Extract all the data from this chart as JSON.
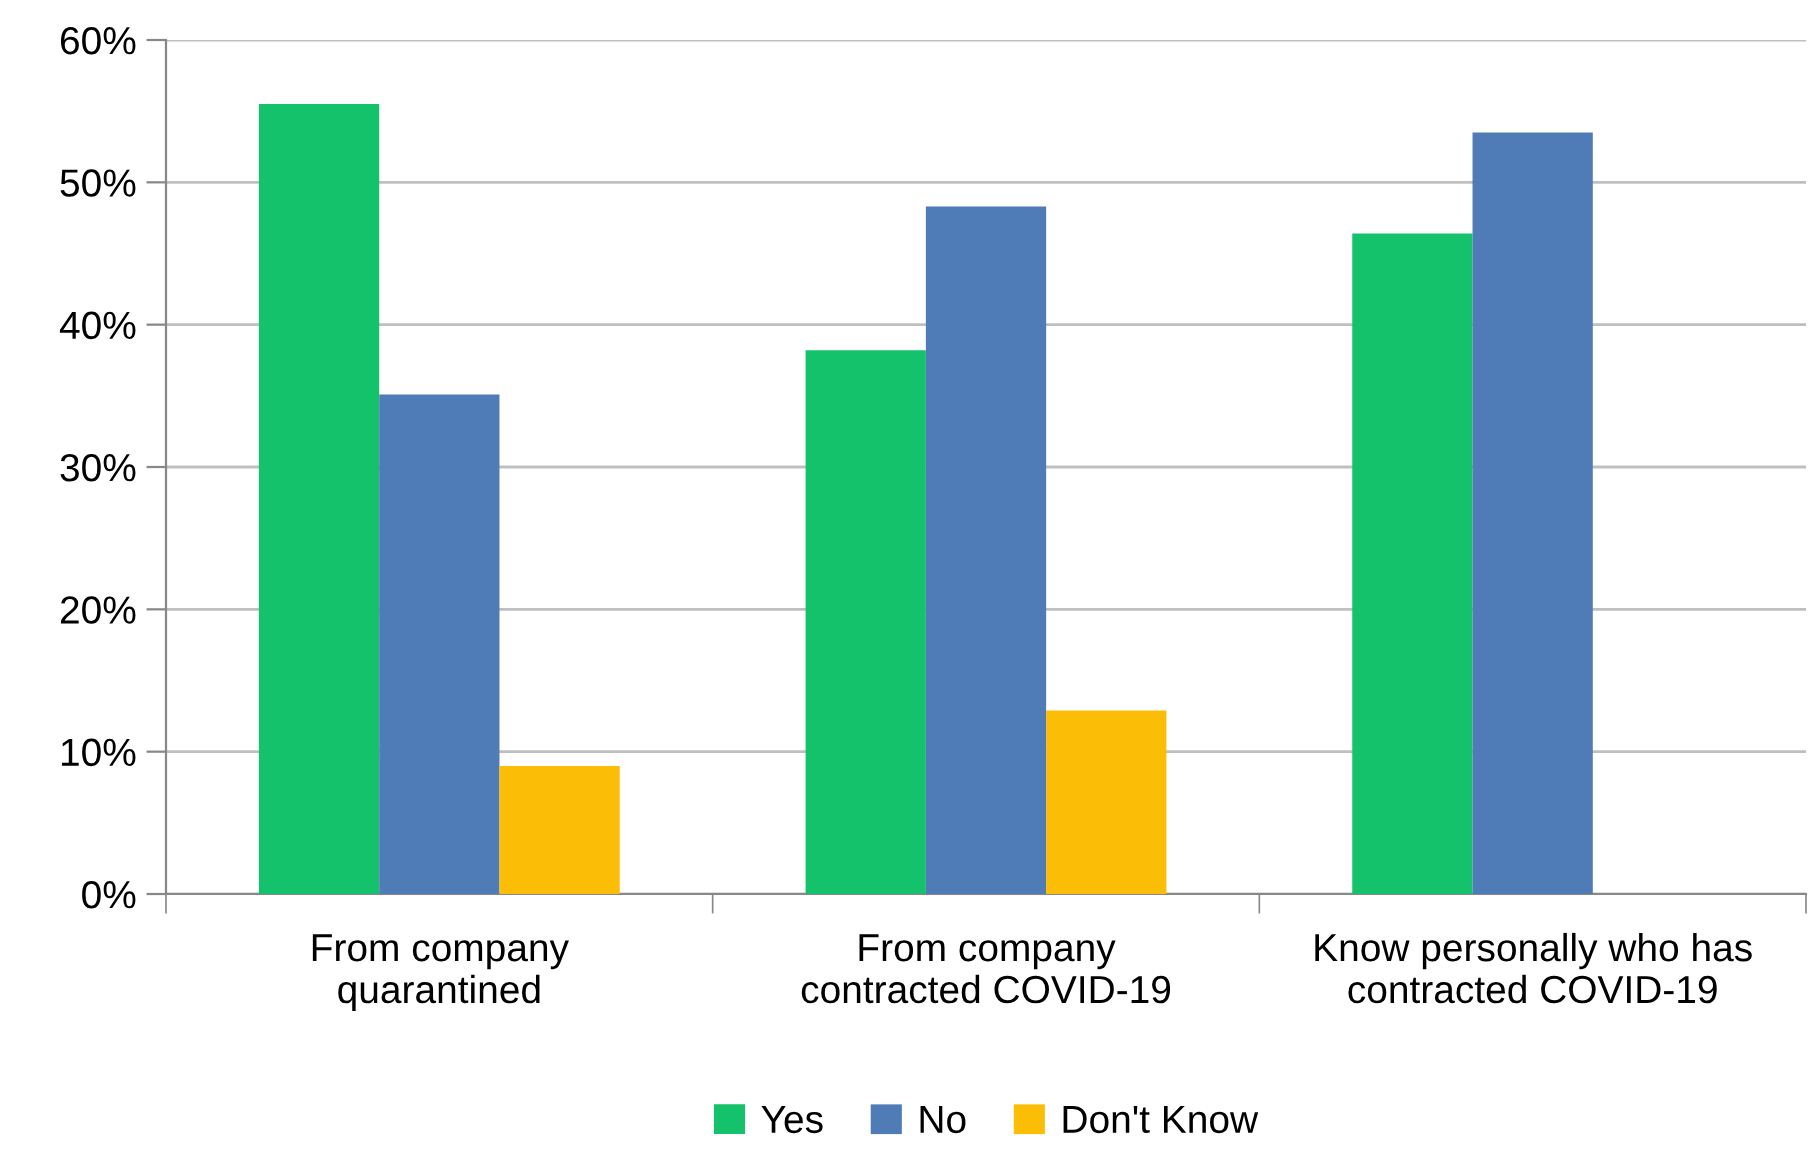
{
  "chart_data": {
    "type": "bar",
    "categories": [
      "From company\nquarantined",
      "From company\ncontracted COVID-19",
      "Know personally who has\ncontracted COVID-19"
    ],
    "series": [
      {
        "name": "Yes",
        "color": "#13c26b",
        "values": [
          55.5,
          38.2,
          46.4
        ]
      },
      {
        "name": "No",
        "color": "#4f7bb6",
        "values": [
          35.1,
          48.3,
          53.5
        ]
      },
      {
        "name": "Don't Know",
        "color": "#fbbd05",
        "values": [
          9.0,
          12.9,
          null
        ]
      }
    ],
    "ylim": [
      0,
      60
    ],
    "yticks": [
      {
        "value": 0,
        "label": "0%"
      },
      {
        "value": 10,
        "label": "10%"
      },
      {
        "value": 20,
        "label": "20%"
      },
      {
        "value": 30,
        "label": "30%"
      },
      {
        "value": 40,
        "label": "40%"
      },
      {
        "value": 50,
        "label": "50%"
      },
      {
        "value": 60,
        "label": "60%"
      }
    ],
    "grid": "y",
    "legend": "bottom"
  }
}
